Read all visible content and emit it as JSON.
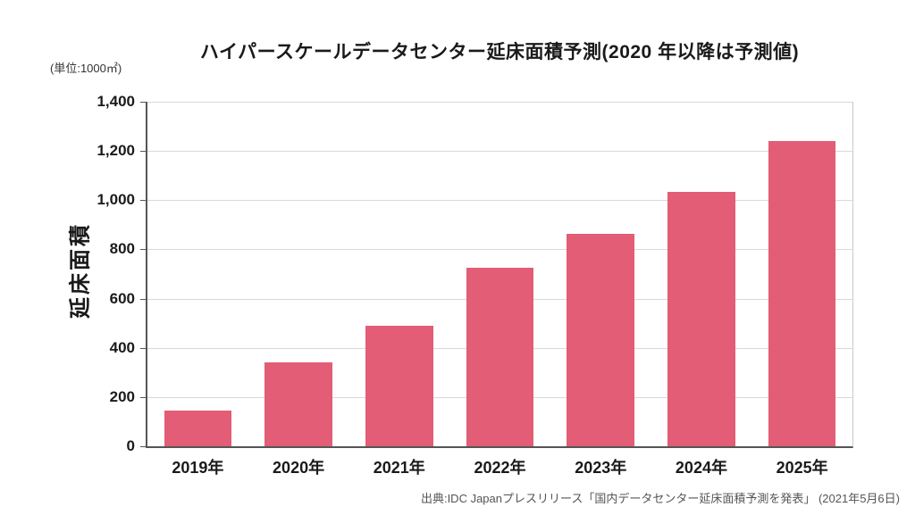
{
  "chart_data": {
    "type": "bar",
    "title": "ハイパースケールデータセンター延床面積予測(2020 年以降は予測値)",
    "unit_label": "(単位:1000㎡)",
    "ylabel": "延床面積",
    "xlabel": "",
    "categories": [
      "2019年",
      "2020年",
      "2021年",
      "2022年",
      "2023年",
      "2024年",
      "2025年"
    ],
    "values": [
      145,
      340,
      490,
      725,
      865,
      1035,
      1240
    ],
    "ylim": [
      0,
      1400
    ],
    "ytick_interval": 200,
    "ytick_labels": [
      "1,400",
      "1,200",
      "1,000",
      "800",
      "600",
      "400",
      "200",
      "0"
    ],
    "grid": "horizontal",
    "legend": "none",
    "bar_color": "#e25d75",
    "gridline_color": "#d9d9d9",
    "axis_color": "#555555",
    "source": "出典:IDC Japanプレスリリース「国内データセンター延床面積予測を発表」 (2021年5月6日)"
  }
}
